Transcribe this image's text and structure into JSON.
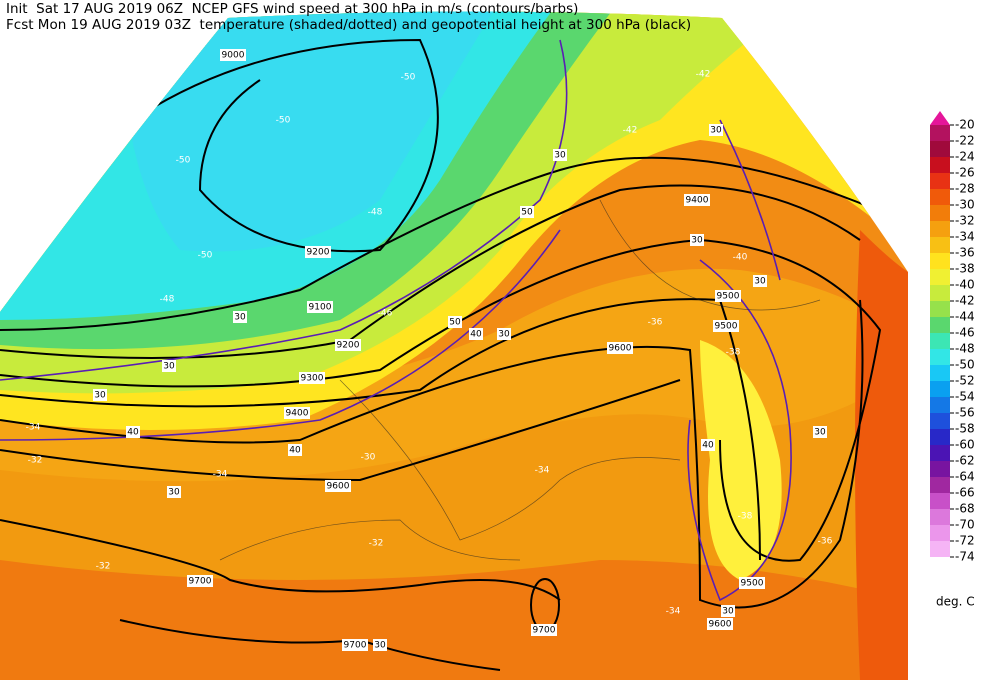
{
  "header": {
    "line1": "Init  Sat 17 AUG 2019 06Z  NCEP GFS wind speed at 300 hPa in m/s (contours/barbs)",
    "line2": "Fcst Mon 19 AUG 2019 03Z  temperature (shaded/dotted) and geopotential height at 300 hPa (black)"
  },
  "colorbar": {
    "levels": [
      -20,
      -22,
      -24,
      -26,
      -28,
      -30,
      -32,
      -34,
      -36,
      -38,
      -40,
      -42,
      -44,
      -46,
      -48,
      -50,
      -52,
      -54,
      -56,
      -58,
      -60,
      -62,
      -64,
      -66,
      -68,
      -70,
      -72,
      -74
    ],
    "colors": [
      "#e5169a",
      "#b3125f",
      "#a00a3c",
      "#c80f1e",
      "#e83214",
      "#f05a0a",
      "#f27d0a",
      "#f5a00f",
      "#f8c014",
      "#ffe21e",
      "#f0f032",
      "#c8eb3c",
      "#96e14b",
      "#5ad76e",
      "#3ce6b4",
      "#32e6e6",
      "#19c8f5",
      "#0aa0f0",
      "#1478e6",
      "#1e50dc",
      "#2828c8",
      "#4b14b4",
      "#7814a0",
      "#a028a0",
      "#c850c8",
      "#dc78dc",
      "#eb96eb",
      "#f5b4f5"
    ],
    "unit": "deg. C"
  },
  "map": {
    "height_labels": [
      "9000",
      "9200",
      "9100",
      "9200",
      "9300",
      "9400",
      "9400",
      "9500",
      "9500",
      "9600",
      "9600",
      "9700",
      "9700",
      "9700",
      "9500",
      "9600"
    ],
    "temperature_labels": [
      "-50",
      "-50",
      "-50",
      "-50",
      "-48",
      "-48",
      "-46",
      "-42",
      "-42",
      "-40",
      "-36",
      "-34",
      "-32",
      "-34",
      "-30",
      "-32",
      "-32",
      "-34",
      "-34",
      "-38",
      "-36",
      "-38"
    ],
    "wind_labels": [
      "30",
      "30",
      "30",
      "40",
      "40",
      "30",
      "50",
      "40",
      "30",
      "30",
      "30",
      "30",
      "40",
      "30",
      "30",
      "30",
      "50",
      "30"
    ]
  }
}
